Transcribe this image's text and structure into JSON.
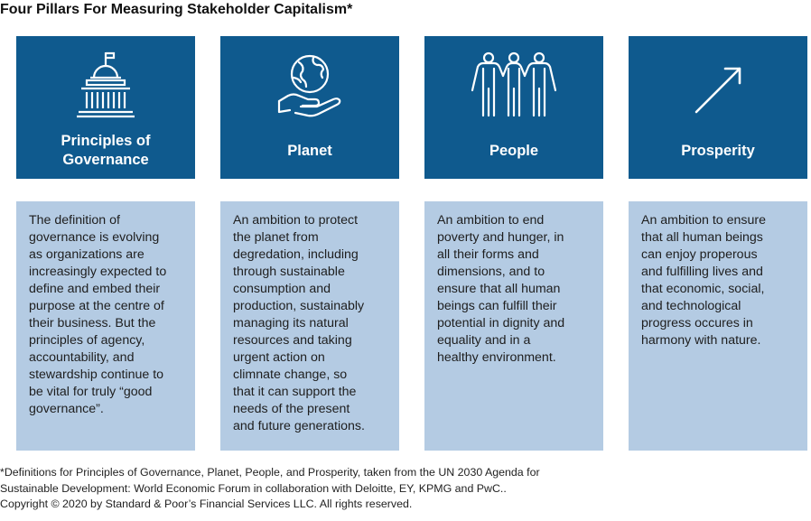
{
  "title": "Four Pillars For Measuring Stakeholder Capitalism*",
  "colors": {
    "header_bg": "#0f5a8e",
    "body_bg": "#b4cbe3",
    "icon_stroke": "#ffffff"
  },
  "pillars": [
    {
      "icon": "government-building-icon",
      "label": "Principles of\nGovernance",
      "description": "The definition of\ngovernance is evolving\nas organizations are\nincreasingly expected to\ndefine and embed their\npurpose at the centre of\ntheir business. But the\nprinciples of agency,\naccountability, and\nstewardship continue to\nbe vital for truly “good\ngovernance”."
    },
    {
      "icon": "globe-in-hand-icon",
      "label": "Planet",
      "description": "An ambition to protect\nthe planet from\ndegredation, including\nthrough sustainable\nconsumption and\nproduction, sustainably\nmanaging its natural\nresources and taking\nurgent action on\nclimnate change, so\nthat it can support the\nneeds of the present\nand future generations."
    },
    {
      "icon": "three-people-icon",
      "label": "People",
      "description": "An ambition to end\npoverty and hunger, in\nall their forms and\ndimensions, and to\nensure that all human\nbeings can fulfill their\npotential in dignity and\nequality and in a\nhealthy environment."
    },
    {
      "icon": "upward-arrow-icon",
      "label": "Prosperity",
      "description": "An ambition to ensure\nthat all human beings\ncan enjoy properous\nand fulfilling lives and\nthat economic, social,\nand technological\nprogress occures in\nharmony with nature."
    }
  ],
  "footnote": "*Definitions for Principles of Governance, Planet, People, and Prosperity, taken from the UN 2030 Agenda for\nSustainable Development: World Economic Forum in collaboration with Deloitte, EY, KPMG and PwC..\nCopyright © 2020  by Standard & Poor’s Financial Services LLC. All rights reserved."
}
